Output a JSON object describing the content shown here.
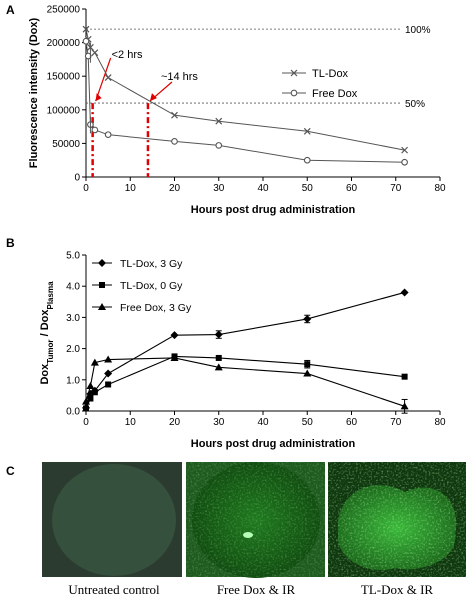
{
  "figure": {
    "panel_labels": [
      "A",
      "B",
      "C"
    ],
    "colors": {
      "axis": "#000000",
      "series": "#555555",
      "grid": "#555555",
      "marker": "#e00000",
      "marker_text": "#e00000"
    }
  },
  "chart_data": [
    {
      "type": "line",
      "panel": "A",
      "xlabel": "Hours post drug administration",
      "ylabel": "Fluorescence intensity (Dox)",
      "xlim": [
        0,
        80
      ],
      "ylim": [
        0,
        250000
      ],
      "xticks": [
        "0",
        "10",
        "20",
        "30",
        "40",
        "50",
        "60",
        "70",
        "80"
      ],
      "yticks": [
        "0",
        "50000",
        "100000",
        "150000",
        "200000",
        "250000"
      ],
      "series": [
        {
          "name": "TL-Dox",
          "marker": "x",
          "x": [
            0,
            0.5,
            1,
            2,
            5,
            20,
            30,
            50,
            72
          ],
          "y": [
            220000,
            205000,
            193000,
            185000,
            148000,
            92000,
            83000,
            68000,
            40000
          ]
        },
        {
          "name": "Free Dox",
          "marker": "o",
          "x": [
            0,
            0.5,
            1,
            2,
            5,
            20,
            30,
            50,
            72
          ],
          "y": [
            202000,
            180000,
            78000,
            70000,
            63000,
            53000,
            47000,
            25000,
            22000
          ]
        }
      ],
      "reference_lines": [
        {
          "label": "100%",
          "y": 220000
        },
        {
          "label": "50%",
          "y": 110000
        }
      ],
      "annotations": [
        {
          "text": "<2 hrs",
          "x": 1.5
        },
        {
          "text": "~14 hrs",
          "x": 14
        }
      ],
      "legend": "right"
    },
    {
      "type": "line",
      "panel": "B",
      "xlabel": "Hours post drug administration",
      "ylabel": "DoxTumor / DoxPlasma",
      "xlim": [
        0,
        80
      ],
      "ylim": [
        0,
        5
      ],
      "xticks": [
        "0",
        "10",
        "20",
        "30",
        "40",
        "50",
        "60",
        "70",
        "80"
      ],
      "yticks": [
        "0.0",
        "1.0",
        "2.0",
        "3.0",
        "4.0",
        "5.0"
      ],
      "series": [
        {
          "name": "TL-Dox, 3 Gy",
          "marker": "diamond",
          "x": [
            0,
            1,
            2,
            5,
            20,
            30,
            50,
            72
          ],
          "y": [
            0.1,
            0.55,
            0.65,
            1.2,
            2.43,
            2.45,
            2.95,
            3.8
          ]
        },
        {
          "name": "TL-Dox, 0 Gy",
          "marker": "square",
          "x": [
            0,
            1,
            2,
            5,
            20,
            30,
            50,
            72
          ],
          "y": [
            0.08,
            0.4,
            0.6,
            0.85,
            1.75,
            1.7,
            1.5,
            1.1
          ]
        },
        {
          "name": "Free Dox, 3 Gy",
          "marker": "triangle",
          "x": [
            0,
            1,
            2,
            5,
            20,
            30,
            50,
            72
          ],
          "y": [
            0.3,
            0.8,
            1.55,
            1.65,
            1.7,
            1.4,
            1.2,
            0.15
          ]
        }
      ],
      "legend": "top-left"
    }
  ],
  "panel_b_ylabel": {
    "dox": "Dox",
    "tumor": "Tumor",
    "sep": " / ",
    "plasma": "Plasma"
  },
  "images": {
    "captions": [
      "Untreated control",
      "Free Dox & IR",
      "TL-Dox & IR"
    ]
  }
}
